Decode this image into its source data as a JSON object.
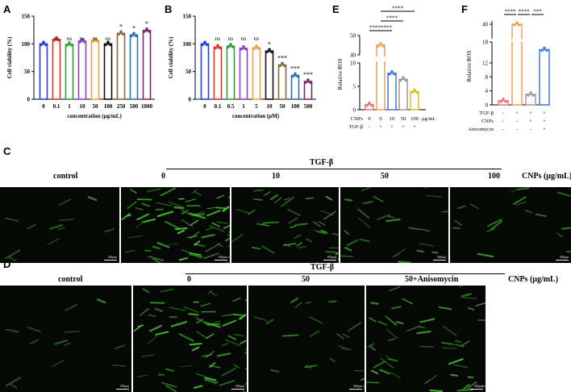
{
  "panels": {
    "A": {
      "letter": "A",
      "chart_data": {
        "type": "bar",
        "ylabel": "Cell viability (%)",
        "xlabel": "concentration (μg/mL)",
        "ylim": [
          0,
          150
        ],
        "yticks": [
          "0",
          "50",
          "100",
          "150"
        ],
        "categories": [
          "0",
          "0.1",
          "1",
          "10",
          "50",
          "100",
          "250",
          "500",
          "1000"
        ],
        "values": [
          100,
          108,
          99,
          105,
          106,
          100,
          119,
          116,
          124
        ],
        "sig": [
          "",
          "ns",
          "ns",
          "ns",
          "ns",
          "ns",
          "*",
          "*",
          "*"
        ],
        "colors": [
          "#1f3fd8",
          "#e0312a",
          "#2f9e3a",
          "#8e44c8",
          "#f0a040",
          "#111111",
          "#8b6a3a",
          "#2a6fb8",
          "#7a2a6a"
        ]
      }
    },
    "B": {
      "letter": "B",
      "chart_data": {
        "type": "bar",
        "ylabel": "Cell viability (%)",
        "xlabel": "concentration (μM)",
        "ylim": [
          0,
          150
        ],
        "yticks": [
          "0",
          "50",
          "100",
          "150"
        ],
        "categories": [
          "0",
          "0.1",
          "0.5",
          "1",
          "5",
          "10",
          "50",
          "100",
          "500"
        ],
        "values": [
          100,
          94,
          96,
          92,
          93,
          87,
          62,
          43,
          32
        ],
        "sig": [
          "",
          "ns",
          "ns",
          "ns",
          "ns",
          "*",
          "***",
          "***",
          "***"
        ],
        "colors": [
          "#1f3fd8",
          "#e0312a",
          "#2f9e3a",
          "#8e44c8",
          "#f0a040",
          "#111111",
          "#8b6a3a",
          "#2a6fb8",
          "#7a2a6a"
        ]
      }
    },
    "E": {
      "letter": "E",
      "chart_data": {
        "type": "bar",
        "ylabel": "Relative ROS",
        "ylim_lower": [
          0,
          10
        ],
        "ylim_upper": [
          40,
          50
        ],
        "yticks_lower": [
          "0",
          "5",
          "10"
        ],
        "yticks_upper": [
          "40",
          "50"
        ],
        "values": [
          1.1,
          45,
          7.8,
          6.5,
          3.9
        ],
        "colors": [
          "#e07a7a",
          "#f0a050",
          "#3f7fd8",
          "#9a9a9a",
          "#d4c030"
        ],
        "row_labels": [
          "CNPs",
          "TGF-β"
        ],
        "rows": [
          [
            "0",
            "0",
            "10",
            "50",
            "100"
          ],
          [
            "-",
            "+",
            "+",
            "+",
            "+"
          ]
        ],
        "unit": "μg/mL",
        "sig_brackets": [
          "****",
          "****",
          "****",
          "****"
        ]
      }
    },
    "F": {
      "letter": "F",
      "chart_data": {
        "type": "bar",
        "ylabel": "Relative ROS",
        "ylim_lower": [
          0,
          18
        ],
        "ylim_upper": [
          30,
          40
        ],
        "yticks_lower": [
          "0",
          "4",
          "8",
          "12",
          "18"
        ],
        "yticks_upper": [
          "40"
        ],
        "values": [
          1.2,
          40,
          3.0,
          15.8
        ],
        "colors": [
          "#e07a7a",
          "#f0a050",
          "#9a9a9a",
          "#3f7fd8"
        ],
        "row_labels": [
          "TGF-β",
          "CNPs",
          "Anisomycin"
        ],
        "rows": [
          [
            "-",
            "+",
            "+",
            "+"
          ],
          [
            "-",
            "-",
            "+",
            "+"
          ],
          [
            "-",
            "-",
            "-",
            "+"
          ]
        ],
        "sig_brackets": [
          "****",
          "****",
          "***"
        ]
      }
    },
    "C": {
      "letter": "C",
      "group_label": "TGF-β",
      "unit_label": "CNPs (μg/mL)",
      "column_labels": [
        "control",
        "0",
        "10",
        "50",
        "100"
      ],
      "scale_bar_label": "500μm"
    },
    "D": {
      "letter": "D",
      "group_label": "TGF-β",
      "unit_label": "CNPs (μg/mL)",
      "column_labels": [
        "control",
        "0",
        "50",
        "50+Anisomycin"
      ],
      "scale_bar_label": "500μm"
    }
  }
}
